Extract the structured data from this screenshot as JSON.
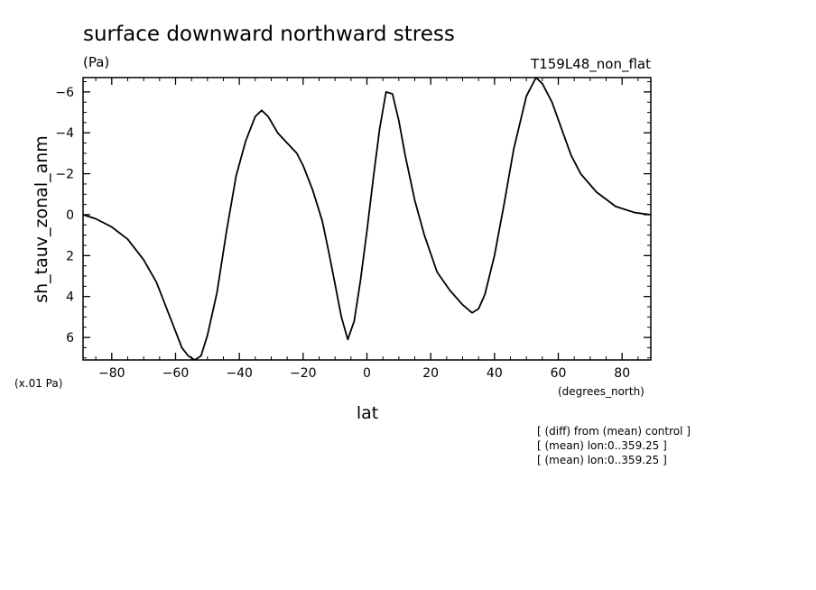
{
  "chart_data": {
    "type": "line",
    "title": "surface downward northward stress",
    "units": "(Pa)",
    "run_label": "T159L48_non_flat",
    "ylabel": "sh_tauv_zonal_anm",
    "yscale_label": "(x.01 Pa)",
    "xlabel": "lat",
    "xunits": "(degrees_north)",
    "notes": [
      "[ (diff) from (mean) control ]",
      "[ (mean) lon:0..359.25 ]",
      "[ (mean) lon:0..359.25 ]"
    ],
    "xlim": [
      -89,
      89
    ],
    "ylim": [
      7.1,
      -6.7
    ],
    "y_inverted": true,
    "xticks": [
      -80,
      -60,
      -40,
      -20,
      0,
      20,
      40,
      60,
      80
    ],
    "yticks": [
      -6,
      -4,
      -2,
      0,
      2,
      4,
      6
    ],
    "series": [
      {
        "x": [
          -89,
          -85,
          -80,
          -75,
          -70,
          -66,
          -62,
          -58,
          -56,
          -54,
          -52,
          -50,
          -47,
          -44,
          -41,
          -38,
          -35,
          -33,
          -31,
          -28,
          -25,
          -22,
          -20,
          -17,
          -14,
          -12,
          -10,
          -8,
          -6,
          -4,
          -2,
          0,
          2,
          4,
          6,
          8,
          10,
          12,
          15,
          18,
          22,
          26,
          30,
          33,
          35,
          37,
          40,
          43,
          46,
          50,
          53,
          55,
          58,
          61,
          64,
          67,
          72,
          78,
          84,
          89
        ],
        "y": [
          0.0,
          0.2,
          0.6,
          1.2,
          2.2,
          3.3,
          4.9,
          6.5,
          6.9,
          7.1,
          6.9,
          5.9,
          3.8,
          0.8,
          -1.9,
          -3.6,
          -4.8,
          -5.1,
          -4.8,
          -4.0,
          -3.5,
          -3.0,
          -2.4,
          -1.2,
          0.3,
          1.8,
          3.4,
          5.0,
          6.1,
          5.2,
          3.2,
          0.8,
          -1.8,
          -4.2,
          -6.0,
          -5.9,
          -4.6,
          -2.9,
          -0.7,
          1.0,
          2.8,
          3.7,
          4.4,
          4.8,
          4.6,
          3.9,
          2.0,
          -0.5,
          -3.2,
          -5.8,
          -6.7,
          -6.4,
          -5.5,
          -4.2,
          -2.9,
          -2.0,
          -1.1,
          -0.4,
          -0.1,
          0.0
        ]
      }
    ]
  }
}
